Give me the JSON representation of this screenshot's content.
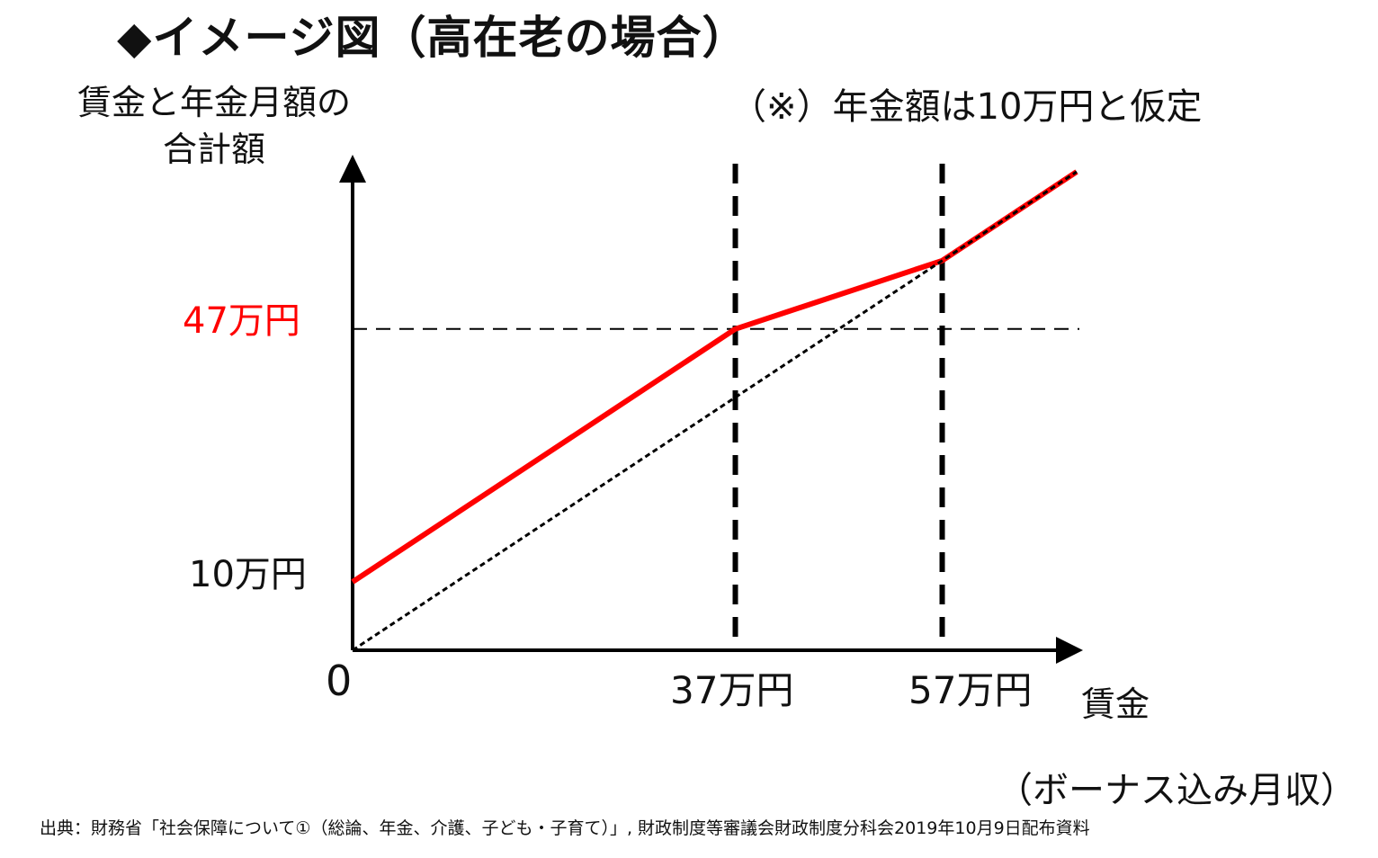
{
  "title": "◆イメージ図（高在老の場合）",
  "note": "（※）年金額は10万円と仮定",
  "source": "出典：財務省「社会保障について①（総論、年金、介護、子ども・子育て）」, 財政制度等審議会財政制度分科会2019年10月9日配布資料",
  "colors": {
    "highlight": "#ff0000",
    "axis": "#000000"
  },
  "chart_data": {
    "type": "line",
    "ylabel_lines": [
      "賃金と年金月額の",
      "合計額"
    ],
    "xlabel": "賃金",
    "xlabel_sub": "（ボーナス込み月収）",
    "x_ticks": [
      {
        "value": 0,
        "label": "0"
      },
      {
        "value": 37,
        "label": "37万円"
      },
      {
        "value": 57,
        "label": "57万円"
      }
    ],
    "y_ticks": [
      {
        "value": 10,
        "label": "10万円",
        "highlight": false
      },
      {
        "value": 47,
        "label": "47万円",
        "highlight": true
      }
    ],
    "series": [
      {
        "style": "solid-red",
        "points": [
          [
            0,
            10
          ],
          [
            37,
            47
          ],
          [
            57,
            57
          ],
          [
            70,
            70
          ]
        ]
      },
      {
        "style": "dotted-black",
        "points": [
          [
            0,
            0
          ],
          [
            70,
            70
          ]
        ]
      }
    ],
    "reference_lines": [
      {
        "axis": "x",
        "value": 37,
        "style": "thick-dashed"
      },
      {
        "axis": "x",
        "value": 57,
        "style": "thick-dashed"
      },
      {
        "axis": "y",
        "value": 47,
        "style": "thin-dashed"
      }
    ],
    "xlim": [
      0,
      70
    ],
    "ylim": [
      0,
      70
    ],
    "grid": false
  }
}
